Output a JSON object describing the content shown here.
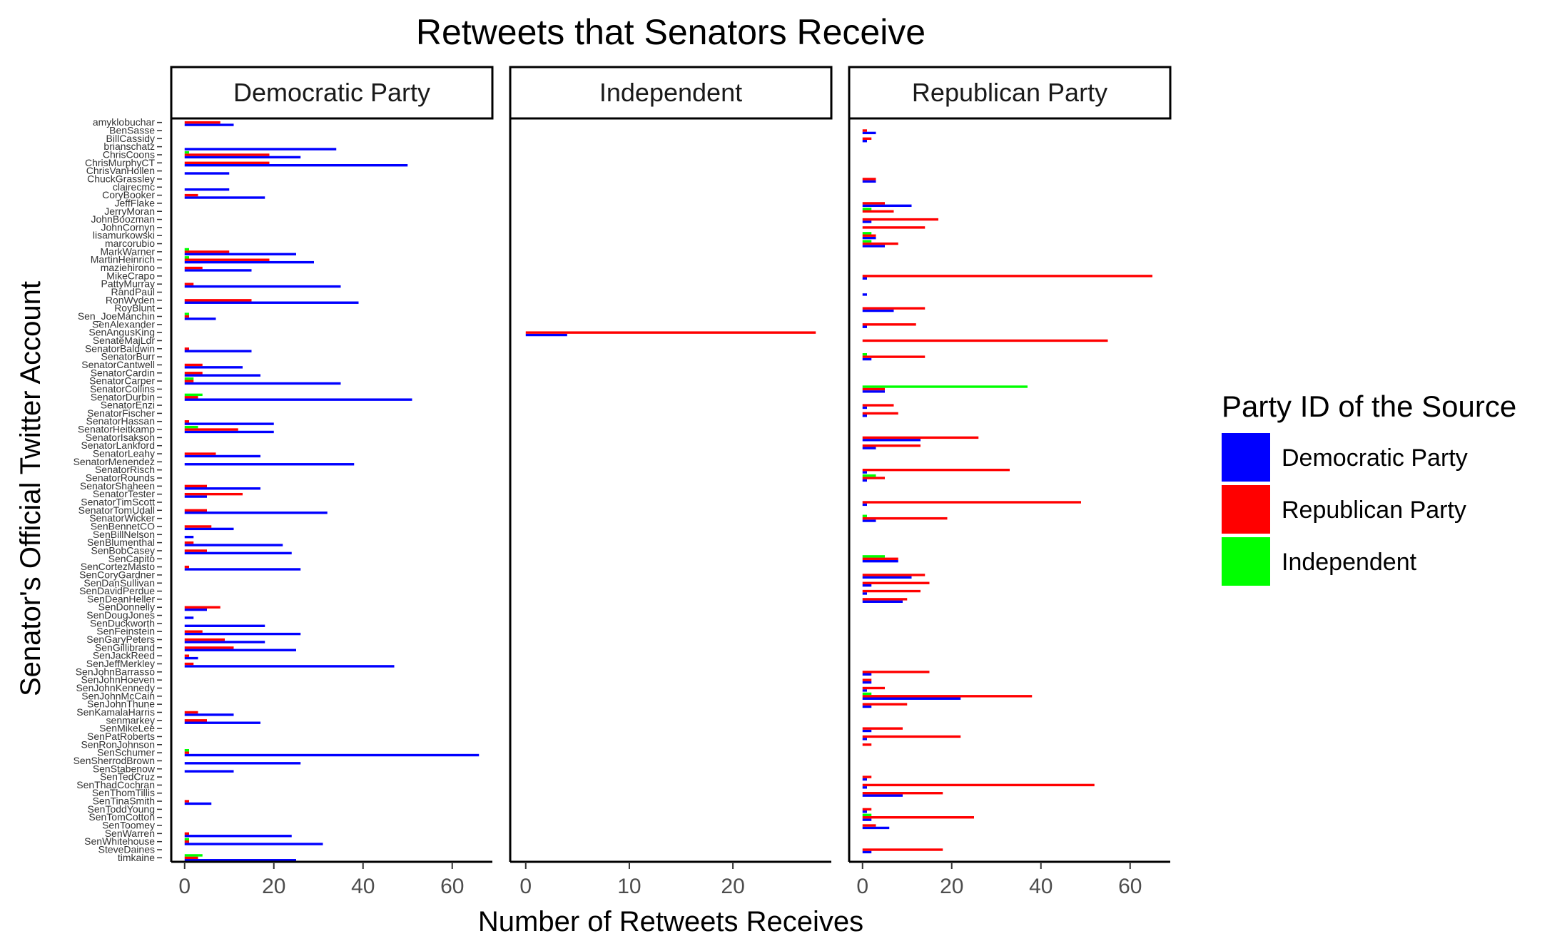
{
  "chart_data": {
    "type": "bar",
    "orientation": "horizontal",
    "title": "Retweets that Senators Receive",
    "xlabel": "Number of Retweets Receives",
    "ylabel": "Senator's Official Twitter Account",
    "legend": {
      "title": "Party ID of the Source",
      "placement": "right",
      "entries": [
        {
          "name": "Democratic Party",
          "color": "#0000ff"
        },
        {
          "name": "Republican Party",
          "color": "#ff0000"
        },
        {
          "name": "Independent",
          "color": "#00ff00"
        }
      ]
    },
    "grid": false,
    "series_order": [
      "Democratic Party",
      "Republican Party",
      "Independent"
    ],
    "colors": {
      "Democratic Party": "#0000ff",
      "Republican Party": "#ff0000",
      "Independent": "#00ff00"
    },
    "categories": [
      "timkaine",
      "SteveDaines",
      "SenWhitehouse",
      "SenWarren",
      "SenToomey",
      "SenTomCotton",
      "SenToddYoung",
      "SenTinaSmith",
      "SenThomTillis",
      "SenThadCochran",
      "SenTedCruz",
      "SenStabenow",
      "SenSherrodBrown",
      "SenSchumer",
      "SenRonJohnson",
      "SenPatRoberts",
      "SenMikeLee",
      "senmarkey",
      "SenKamalaHarris",
      "SenJohnThune",
      "SenJohnMcCain",
      "SenJohnKennedy",
      "SenJohnHoeven",
      "SenJohnBarrasso",
      "SenJeffMerkley",
      "SenJackReed",
      "SenGillibrand",
      "SenGaryPeters",
      "SenFeinstein",
      "SenDuckworth",
      "SenDougJones",
      "SenDonnelly",
      "SenDeanHeller",
      "SenDavidPerdue",
      "SenDanSullivan",
      "SenCoryGardner",
      "SenCortezMasto",
      "SenCapito",
      "SenBobCasey",
      "SenBlumenthal",
      "SenBillNelson",
      "SenBennetCO",
      "SenatorWicker",
      "SenatorTomUdall",
      "SenatorTimScott",
      "SenatorTester",
      "SenatorShaheen",
      "SenatorRounds",
      "SenatorRisch",
      "SenatorMenendez",
      "SenatorLeahy",
      "SenatorLankford",
      "SenatorIsakson",
      "SenatorHeitkamp",
      "SenatorHassan",
      "SenatorFischer",
      "SenatorEnzi",
      "SenatorDurbin",
      "SenatorCollins",
      "SenatorCarper",
      "SenatorCardin",
      "SenatorCantwell",
      "SenatorBurr",
      "SenatorBaldwin",
      "SenateMajLdr",
      "SenAngusKing",
      "SenAlexander",
      "Sen_JoeManchin",
      "RoyBlunt",
      "RonWyden",
      "RandPaul",
      "PattyMurray",
      "MikeCrapo",
      "maziehirono",
      "MartinHeinrich",
      "MarkWarner",
      "marcorubio",
      "lisamurkowski",
      "JohnCornyn",
      "JohnBoozman",
      "JerryMoran",
      "JeffFlake",
      "CoryBooker",
      "clairecmc",
      "ChuckGrassley",
      "ChrisVanHollen",
      "ChrisMurphyCT",
      "ChrisCoons",
      "brianschatz",
      "BillCassidy",
      "BenSasse",
      "amyklobuchar"
    ],
    "panels": [
      {
        "label": "Democratic Party",
        "xlim": [
          -3,
          69
        ],
        "xticks": [
          "0",
          "20",
          "40",
          "60"
        ],
        "data": {
          "timkaine": [
            25,
            3,
            4
          ],
          "SenWhitehouse": [
            31,
            1,
            1
          ],
          "SenWarren": [
            24,
            1,
            0
          ],
          "SenTinaSmith": [
            6,
            1,
            0
          ],
          "SenStabenow": [
            11,
            0,
            0
          ],
          "SenSherrodBrown": [
            26,
            0,
            0
          ],
          "SenSchumer": [
            66,
            1,
            1
          ],
          "senmarkey": [
            17,
            5,
            0
          ],
          "SenKamalaHarris": [
            11,
            3,
            0
          ],
          "SenJeffMerkley": [
            47,
            2,
            0
          ],
          "SenJackReed": [
            3,
            1,
            0
          ],
          "SenGillibrand": [
            25,
            11,
            0
          ],
          "SenGaryPeters": [
            18,
            9,
            0
          ],
          "SenFeinstein": [
            26,
            4,
            0
          ],
          "SenDuckworth": [
            18,
            0,
            0
          ],
          "SenDougJones": [
            2,
            0,
            0
          ],
          "SenDonnelly": [
            5,
            8,
            0
          ],
          "SenCortezMasto": [
            26,
            1,
            0
          ],
          "SenBobCasey": [
            24,
            5,
            0
          ],
          "SenBlumenthal": [
            22,
            2,
            0
          ],
          "SenBillNelson": [
            2,
            0,
            0
          ],
          "SenBennetCO": [
            11,
            6,
            0
          ],
          "SenatorTomUdall": [
            32,
            5,
            0
          ],
          "SenatorTester": [
            5,
            13,
            0
          ],
          "SenatorShaheen": [
            17,
            5,
            0
          ],
          "SenatorMenendez": [
            38,
            0,
            0
          ],
          "SenatorLeahy": [
            17,
            7,
            0
          ],
          "SenatorHeitkamp": [
            20,
            12,
            3
          ],
          "SenatorHassan": [
            20,
            1,
            0
          ],
          "SenatorDurbin": [
            51,
            3,
            4
          ],
          "SenatorCarper": [
            35,
            2,
            2
          ],
          "SenatorCardin": [
            17,
            4,
            0
          ],
          "SenatorCantwell": [
            13,
            4,
            0
          ],
          "SenatorBaldwin": [
            15,
            1,
            0
          ],
          "Sen_JoeManchin": [
            7,
            1,
            1
          ],
          "RonWyden": [
            39,
            15,
            0
          ],
          "PattyMurray": [
            35,
            2,
            0
          ],
          "maziehirono": [
            15,
            4,
            0
          ],
          "MartinHeinrich": [
            29,
            19,
            1
          ],
          "MarkWarner": [
            25,
            10,
            1
          ],
          "CoryBooker": [
            18,
            3,
            0
          ],
          "clairecmc": [
            10,
            0,
            0
          ],
          "ChrisVanHollen": [
            10,
            0,
            0
          ],
          "ChrisMurphyCT": [
            50,
            19,
            0
          ],
          "ChrisCoons": [
            26,
            19,
            1
          ],
          "brianschatz": [
            34,
            0,
            0
          ],
          "amyklobuchar": [
            11,
            8,
            0
          ]
        }
      },
      {
        "label": "Independent",
        "xlim": [
          -1.5,
          29.5
        ],
        "xticks": [
          "0",
          "10",
          "20"
        ],
        "data": {
          "SenAngusKing": [
            4,
            28,
            0
          ]
        }
      },
      {
        "label": "Republican Party",
        "xlim": [
          -3,
          69
        ],
        "xticks": [
          "0",
          "20",
          "40",
          "60"
        ],
        "data": {
          "SteveDaines": [
            2,
            18,
            0
          ],
          "SenToomey": [
            6,
            3,
            0
          ],
          "SenTomCotton": [
            2,
            25,
            2
          ],
          "SenToddYoung": [
            1,
            2,
            0
          ],
          "SenThomTillis": [
            9,
            18,
            0
          ],
          "SenThadCochran": [
            1,
            52,
            0
          ],
          "SenTedCruz": [
            1,
            2,
            0
          ],
          "SenRonJohnson": [
            0,
            2,
            0
          ],
          "SenPatRoberts": [
            1,
            22,
            0
          ],
          "SenMikeLee": [
            2,
            9,
            0
          ],
          "SenJohnThune": [
            2,
            10,
            0
          ],
          "SenJohnMcCain": [
            22,
            38,
            2
          ],
          "SenJohnKennedy": [
            1,
            5,
            0
          ],
          "SenJohnHoeven": [
            2,
            2,
            0
          ],
          "SenJohnBarrasso": [
            2,
            15,
            0
          ],
          "SenDeanHeller": [
            9,
            10,
            0
          ],
          "SenDavidPerdue": [
            1,
            13,
            0
          ],
          "SenDanSullivan": [
            2,
            15,
            0
          ],
          "SenCoryGardner": [
            11,
            14,
            0
          ],
          "SenCapito": [
            8,
            8,
            5
          ],
          "SenatorWicker": [
            3,
            19,
            1
          ],
          "SenatorTimScott": [
            1,
            49,
            0
          ],
          "SenatorRounds": [
            1,
            5,
            3
          ],
          "SenatorRisch": [
            1,
            33,
            0
          ],
          "SenatorLankford": [
            3,
            13,
            0
          ],
          "SenatorIsakson": [
            13,
            26,
            0
          ],
          "SenatorFischer": [
            1,
            8,
            0
          ],
          "SenatorEnzi": [
            1,
            7,
            0
          ],
          "SenatorCollins": [
            5,
            5,
            37
          ],
          "SenatorBurr": [
            2,
            14,
            1
          ],
          "SenateMajLdr": [
            0,
            55,
            0
          ],
          "SenAlexander": [
            1,
            12,
            0
          ],
          "RoyBlunt": [
            7,
            14,
            0
          ],
          "RandPaul": [
            1,
            0,
            0
          ],
          "MikeCrapo": [
            1,
            65,
            0
          ],
          "marcorubio": [
            5,
            8,
            2
          ],
          "lisamurkowski": [
            3,
            3,
            2
          ],
          "JohnCornyn": [
            0,
            14,
            0
          ],
          "JohnBoozman": [
            2,
            17,
            0
          ],
          "JerryMoran": [
            0,
            7,
            2
          ],
          "JeffFlake": [
            11,
            5,
            0
          ],
          "ChuckGrassley": [
            3,
            3,
            0
          ],
          "BillCassidy": [
            1,
            2,
            0
          ],
          "BenSasse": [
            3,
            1,
            0
          ]
        }
      }
    ]
  }
}
